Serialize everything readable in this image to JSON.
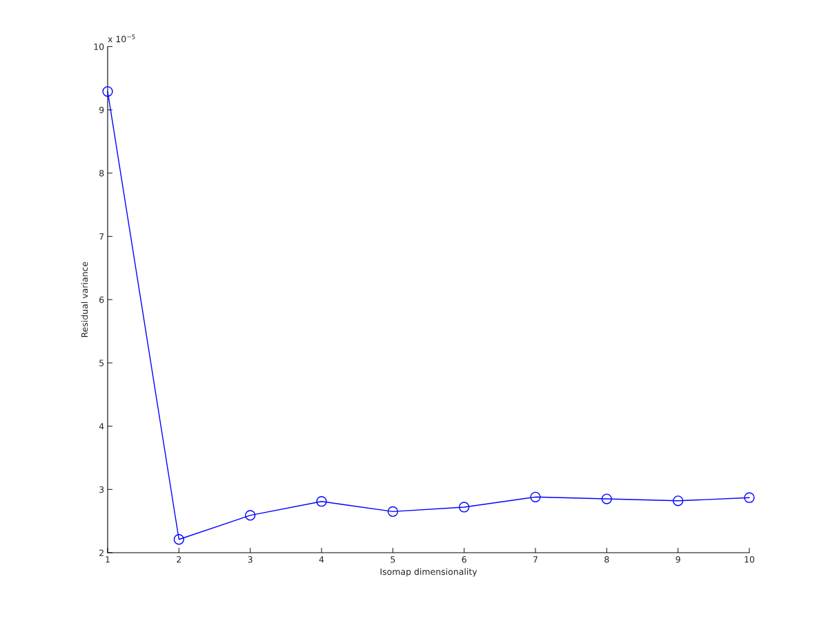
{
  "chart_data": {
    "type": "line",
    "xlabel": "Isomap dimensionality",
    "ylabel": "Residual variance",
    "x": [
      1,
      2,
      3,
      4,
      5,
      6,
      7,
      8,
      9,
      10
    ],
    "series": [
      {
        "color": "#0000ff",
        "values": [
          9.29,
          2.21,
          2.59,
          2.81,
          2.65,
          2.72,
          2.88,
          2.85,
          2.82,
          2.87
        ]
      }
    ],
    "xlim": [
      1,
      10
    ],
    "xticks": [
      1,
      2,
      3,
      4,
      5,
      6,
      7,
      8,
      9,
      10
    ],
    "ylim": [
      2,
      10
    ],
    "yticks": [
      2,
      3,
      4,
      5,
      6,
      7,
      8,
      9,
      10
    ],
    "annotations": [
      "x 10$^{−5}$"
    ],
    "marker": "circle",
    "line_style": "solid",
    "grid": false,
    "legend": false
  }
}
